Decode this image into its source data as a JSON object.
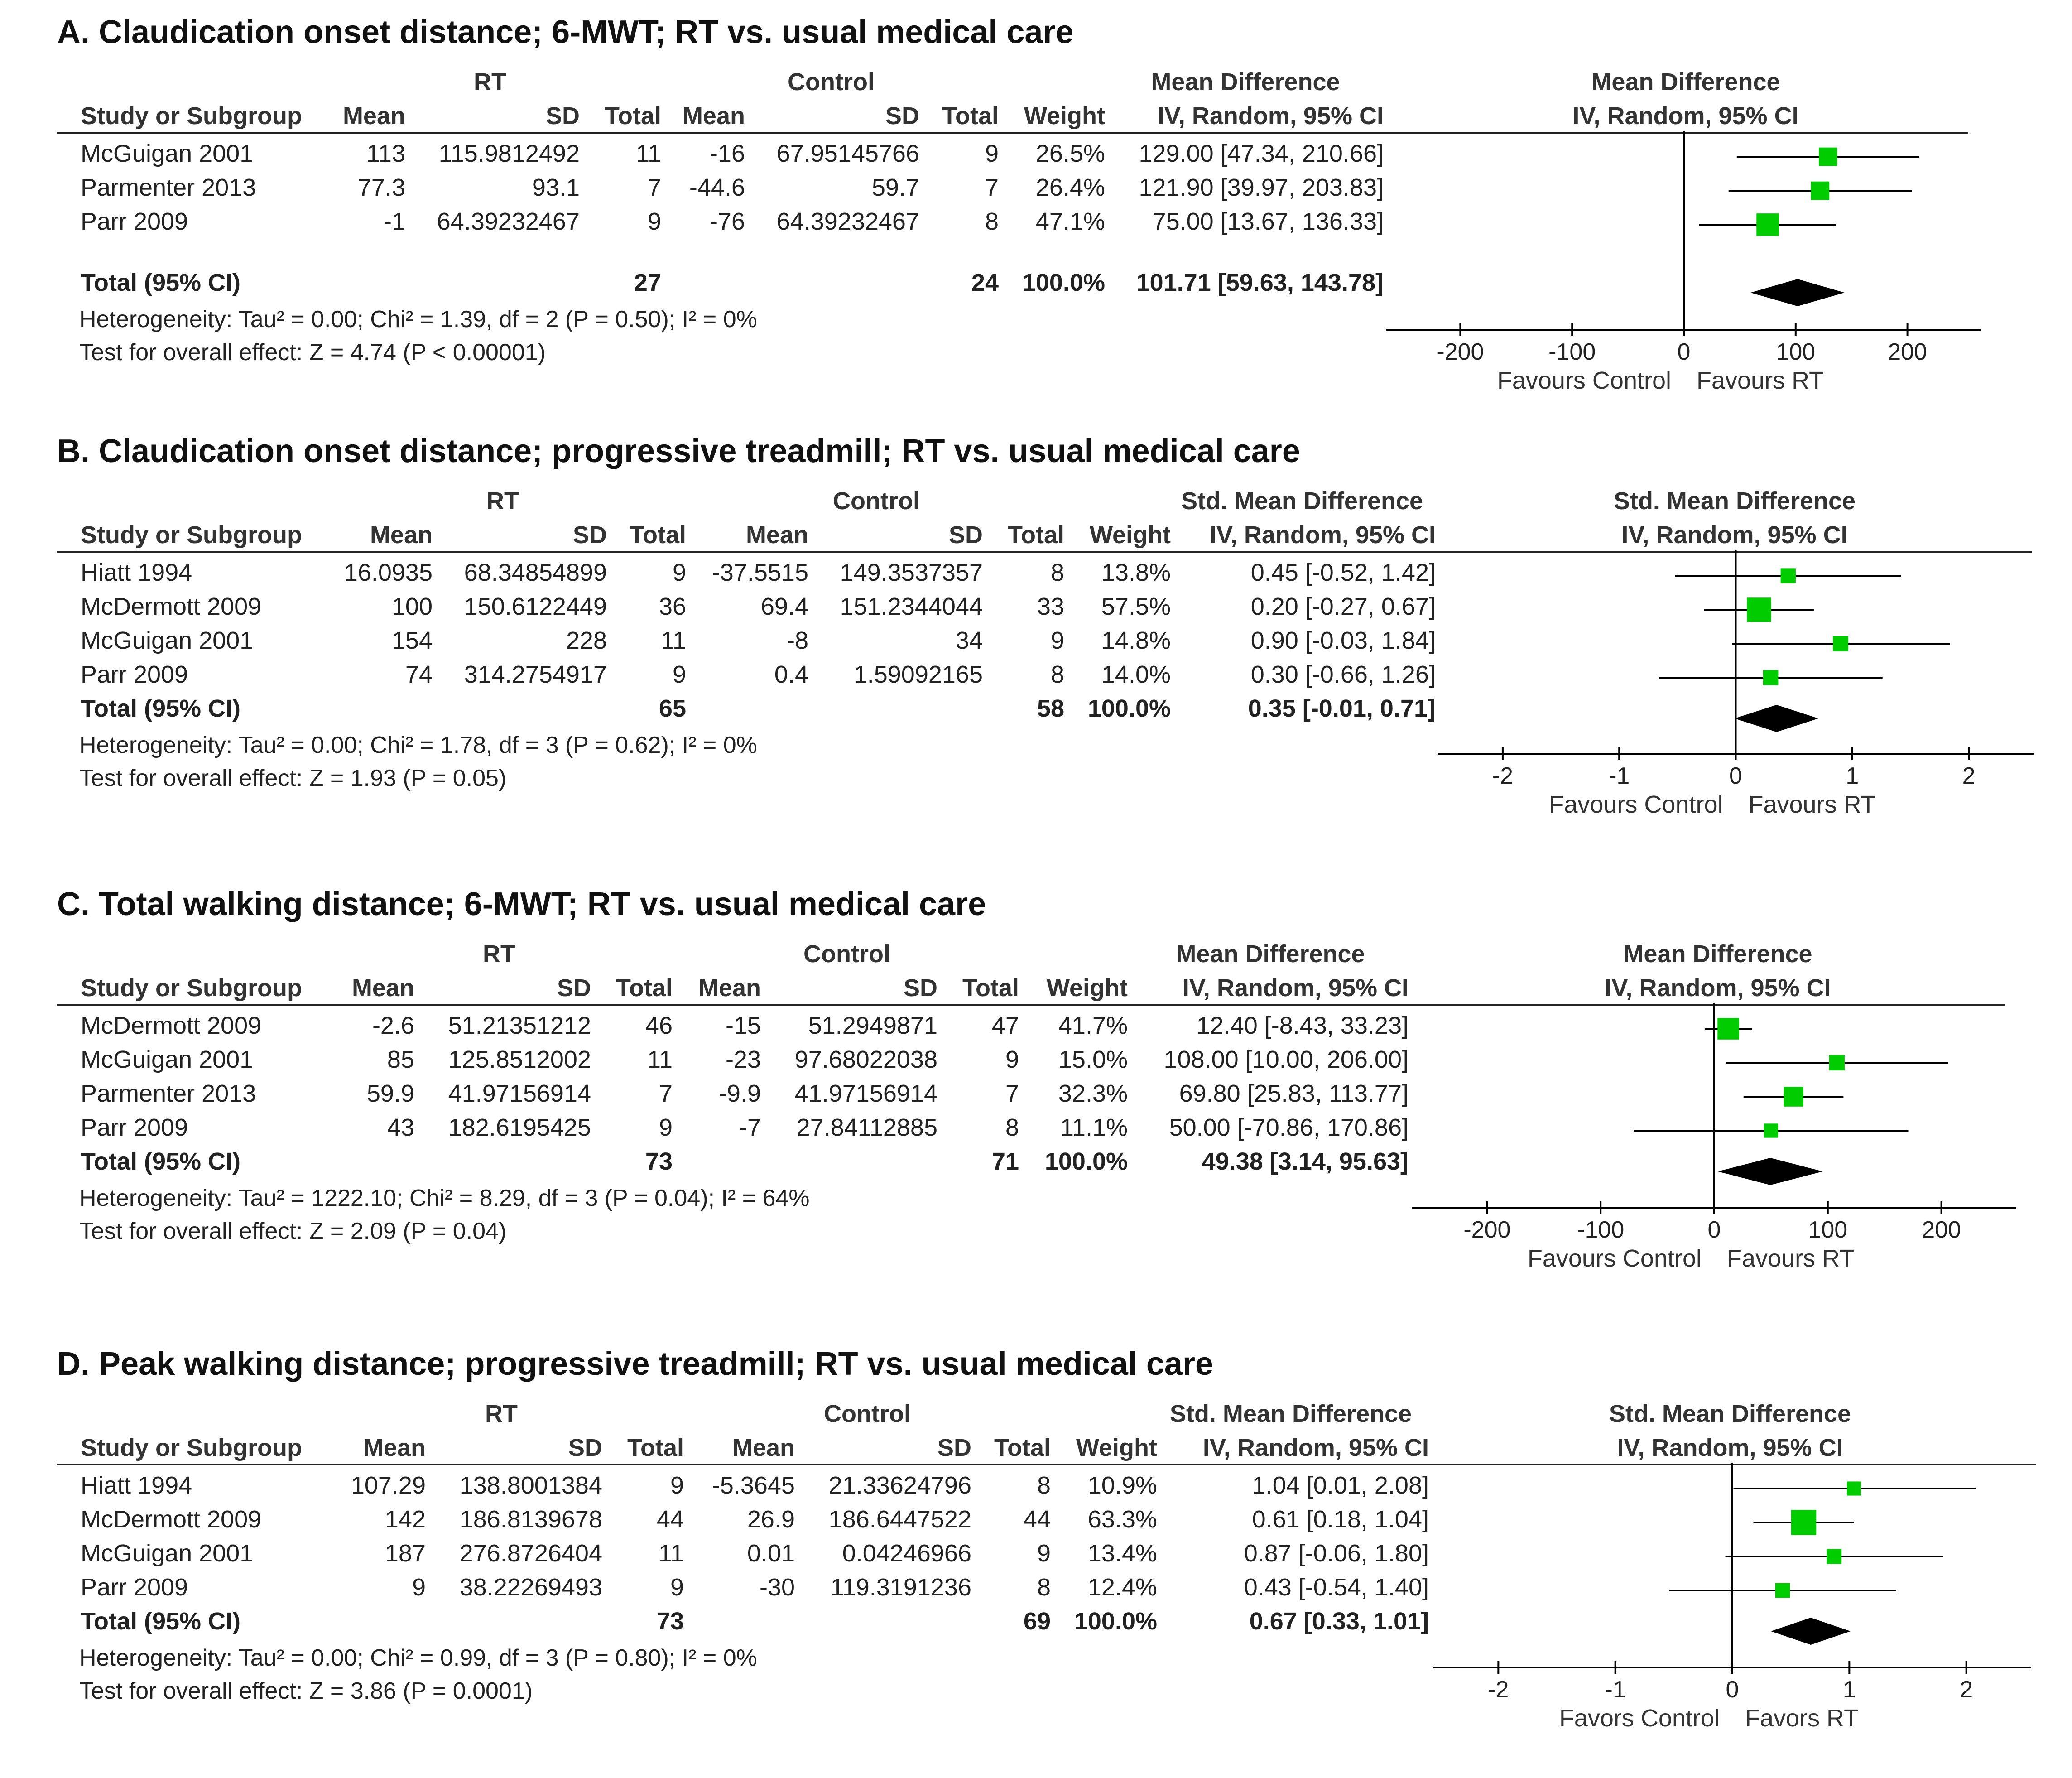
{
  "chart_data": [
    {
      "type": "forest",
      "title": "A. Claudication onset distance; 6-MWT; RT vs. usual medical care",
      "measure_header": "Mean Difference",
      "measure_subheader": "IV, Random, 95% CI",
      "group_rt": "RT",
      "group_ctrl": "Control",
      "columns": [
        "Study or Subgroup",
        "Mean",
        "SD",
        "Total",
        "Mean",
        "SD",
        "Total",
        "Weight"
      ],
      "studies": [
        {
          "name": "McGuigan 2001",
          "rt_mean": "113",
          "rt_sd": "115.9812492",
          "rt_total": "11",
          "c_mean": "-16",
          "c_sd": "67.95145766",
          "c_total": "9",
          "weight": "26.5%",
          "ci_text": "129.00 [47.34, 210.66]",
          "est": 129.0,
          "lo": 47.34,
          "hi": 210.66,
          "w": 26.5
        },
        {
          "name": "Parmenter 2013",
          "rt_mean": "77.3",
          "rt_sd": "93.1",
          "rt_total": "7",
          "c_mean": "-44.6",
          "c_sd": "59.7",
          "c_total": "7",
          "weight": "26.4%",
          "ci_text": "121.90 [39.97, 203.83]",
          "est": 121.9,
          "lo": 39.97,
          "hi": 203.83,
          "w": 26.4
        },
        {
          "name": "Parr 2009",
          "rt_mean": "-1",
          "rt_sd": "64.39232467",
          "rt_total": "9",
          "c_mean": "-76",
          "c_sd": "64.39232467",
          "c_total": "8",
          "weight": "47.1%",
          "ci_text": "75.00 [13.67, 136.33]",
          "est": 75.0,
          "lo": 13.67,
          "hi": 136.33,
          "w": 47.1
        }
      ],
      "total": {
        "label": "Total (95% CI)",
        "rt_total": "27",
        "c_total": "24",
        "weight": "100.0%",
        "ci_text": "101.71 [59.63, 143.78]",
        "est": 101.71,
        "lo": 59.63,
        "hi": 143.78
      },
      "heterogeneity": "Heterogeneity: Tau² = 0.00; Chi² = 1.39, df = 2 (P = 0.50); I² = 0%",
      "overall": "Test for overall effect: Z = 4.74 (P < 0.00001)",
      "xlim": [
        -250,
        250
      ],
      "ticks": [
        -200,
        -100,
        0,
        100,
        200
      ],
      "tick_labels": [
        "-200",
        "-100",
        "0",
        "100",
        "200"
      ],
      "favours_left": "Favours Control",
      "favours_right": "Favours RT"
    },
    {
      "type": "forest",
      "title": "B. Claudication onset distance; progressive treadmill; RT vs. usual medical care",
      "measure_header": "Std. Mean Difference",
      "measure_subheader": "IV, Random, 95% CI",
      "group_rt": "RT",
      "group_ctrl": "Control",
      "columns": [
        "Study or Subgroup",
        "Mean",
        "SD",
        "Total",
        "Mean",
        "SD",
        "Total",
        "Weight"
      ],
      "studies": [
        {
          "name": "Hiatt 1994",
          "rt_mean": "16.0935",
          "rt_sd": "68.34854899",
          "rt_total": "9",
          "c_mean": "-37.5515",
          "c_sd": "149.3537357",
          "c_total": "8",
          "weight": "13.8%",
          "ci_text": "0.45 [-0.52, 1.42]",
          "est": 0.45,
          "lo": -0.52,
          "hi": 1.42,
          "w": 13.8
        },
        {
          "name": "McDermott 2009",
          "rt_mean": "100",
          "rt_sd": "150.6122449",
          "rt_total": "36",
          "c_mean": "69.4",
          "c_sd": "151.2344044",
          "c_total": "33",
          "weight": "57.5%",
          "ci_text": "0.20 [-0.27, 0.67]",
          "est": 0.2,
          "lo": -0.27,
          "hi": 0.67,
          "w": 57.5
        },
        {
          "name": "McGuigan 2001",
          "rt_mean": "154",
          "rt_sd": "228",
          "rt_total": "11",
          "c_mean": "-8",
          "c_sd": "34",
          "c_total": "9",
          "weight": "14.8%",
          "ci_text": "0.90 [-0.03, 1.84]",
          "est": 0.9,
          "lo": -0.03,
          "hi": 1.84,
          "w": 14.8
        },
        {
          "name": "Parr 2009",
          "rt_mean": "74",
          "rt_sd": "314.2754917",
          "rt_total": "9",
          "c_mean": "0.4",
          "c_sd": "1.59092165",
          "c_total": "8",
          "weight": "14.0%",
          "ci_text": "0.30 [-0.66, 1.26]",
          "est": 0.3,
          "lo": -0.66,
          "hi": 1.26,
          "w": 14.0
        }
      ],
      "total": {
        "label": "Total (95% CI)",
        "rt_total": "65",
        "c_total": "58",
        "weight": "100.0%",
        "ci_text": "0.35 [-0.01, 0.71]",
        "est": 0.35,
        "lo": -0.01,
        "hi": 0.71
      },
      "heterogeneity": "Heterogeneity: Tau² = 0.00; Chi² = 1.78, df = 3 (P = 0.62); I² = 0%",
      "overall": "Test for overall effect: Z = 1.93 (P = 0.05)",
      "xlim": [
        -2.4,
        2.4
      ],
      "ticks": [
        -2,
        -1,
        0,
        1,
        2
      ],
      "tick_labels": [
        "-2",
        "-1",
        "0",
        "1",
        "2"
      ],
      "favours_left": "Favours Control",
      "favours_right": "Favours RT"
    },
    {
      "type": "forest",
      "title": "C. Total walking distance; 6-MWT; RT vs. usual medical care",
      "measure_header": "Mean Difference",
      "measure_subheader": "IV, Random, 95% CI",
      "group_rt": "RT",
      "group_ctrl": "Control",
      "columns": [
        "Study or Subgroup",
        "Mean",
        "SD",
        "Total",
        "Mean",
        "SD",
        "Total",
        "Weight"
      ],
      "studies": [
        {
          "name": "McDermott 2009",
          "rt_mean": "-2.6",
          "rt_sd": "51.21351212",
          "rt_total": "46",
          "c_mean": "-15",
          "c_sd": "51.2949871",
          "c_total": "47",
          "weight": "41.7%",
          "ci_text": "12.40 [-8.43, 33.23]",
          "est": 12.4,
          "lo": -8.43,
          "hi": 33.23,
          "w": 41.7
        },
        {
          "name": "McGuigan 2001",
          "rt_mean": "85",
          "rt_sd": "125.8512002",
          "rt_total": "11",
          "c_mean": "-23",
          "c_sd": "97.68022038",
          "c_total": "9",
          "weight": "15.0%",
          "ci_text": "108.00 [10.00, 206.00]",
          "est": 108.0,
          "lo": 10.0,
          "hi": 206.0,
          "w": 15.0
        },
        {
          "name": "Parmenter 2013",
          "rt_mean": "59.9",
          "rt_sd": "41.97156914",
          "rt_total": "7",
          "c_mean": "-9.9",
          "c_sd": "41.97156914",
          "c_total": "7",
          "weight": "32.3%",
          "ci_text": "69.80 [25.83, 113.77]",
          "est": 69.8,
          "lo": 25.83,
          "hi": 113.77,
          "w": 32.3
        },
        {
          "name": "Parr 2009",
          "rt_mean": "43",
          "rt_sd": "182.6195425",
          "rt_total": "9",
          "c_mean": "-7",
          "c_sd": "27.84112885",
          "c_total": "8",
          "weight": "11.1%",
          "ci_text": "50.00 [-70.86, 170.86]",
          "est": 50.0,
          "lo": -70.86,
          "hi": 170.86,
          "w": 11.1
        }
      ],
      "total": {
        "label": "Total (95% CI)",
        "rt_total": "73",
        "c_total": "71",
        "weight": "100.0%",
        "ci_text": "49.38 [3.14, 95.63]",
        "est": 49.38,
        "lo": 3.14,
        "hi": 95.63
      },
      "heterogeneity": "Heterogeneity: Tau² = 1222.10; Chi² = 8.29, df = 3 (P = 0.04); I² = 64%",
      "overall": "Test for overall effect: Z = 2.09 (P = 0.04)",
      "xlim": [
        -250,
        250
      ],
      "ticks": [
        -200,
        -100,
        0,
        100,
        200
      ],
      "tick_labels": [
        "-200",
        "-100",
        "0",
        "100",
        "200"
      ],
      "favours_left": "Favours Control",
      "favours_right": "Favours RT"
    },
    {
      "type": "forest",
      "title": "D. Peak walking distance; progressive treadmill; RT vs. usual medical care",
      "measure_header": "Std. Mean Difference",
      "measure_subheader": "IV, Random, 95% CI",
      "group_rt": "RT",
      "group_ctrl": "Control",
      "columns": [
        "Study or Subgroup",
        "Mean",
        "SD",
        "Total",
        "Mean",
        "SD",
        "Total",
        "Weight"
      ],
      "studies": [
        {
          "name": "Hiatt 1994",
          "rt_mean": "107.29",
          "rt_sd": "138.8001384",
          "rt_total": "9",
          "c_mean": "-5.3645",
          "c_sd": "21.33624796",
          "c_total": "8",
          "weight": "10.9%",
          "ci_text": "1.04 [0.01, 2.08]",
          "est": 1.04,
          "lo": 0.01,
          "hi": 2.08,
          "w": 10.9
        },
        {
          "name": "McDermott 2009",
          "rt_mean": "142",
          "rt_sd": "186.8139678",
          "rt_total": "44",
          "c_mean": "26.9",
          "c_sd": "186.6447522",
          "c_total": "44",
          "weight": "63.3%",
          "ci_text": "0.61 [0.18, 1.04]",
          "est": 0.61,
          "lo": 0.18,
          "hi": 1.04,
          "w": 63.3
        },
        {
          "name": "McGuigan 2001",
          "rt_mean": "187",
          "rt_sd": "276.8726404",
          "rt_total": "11",
          "c_mean": "0.01",
          "c_sd": "0.04246966",
          "c_total": "9",
          "weight": "13.4%",
          "ci_text": "0.87 [-0.06, 1.80]",
          "est": 0.87,
          "lo": -0.06,
          "hi": 1.8,
          "w": 13.4
        },
        {
          "name": "Parr 2009",
          "rt_mean": "9",
          "rt_sd": "38.22269493",
          "rt_total": "9",
          "c_mean": "-30",
          "c_sd": "119.3191236",
          "c_total": "8",
          "weight": "12.4%",
          "ci_text": "0.43 [-0.54, 1.40]",
          "est": 0.43,
          "lo": -0.54,
          "hi": 1.4,
          "w": 12.4
        }
      ],
      "total": {
        "label": "Total (95% CI)",
        "rt_total": "73",
        "c_total": "69",
        "weight": "100.0%",
        "ci_text": "0.67 [0.33, 1.01]",
        "est": 0.67,
        "lo": 0.33,
        "hi": 1.01
      },
      "heterogeneity": "Heterogeneity: Tau² = 0.00; Chi² = 0.99, df = 3 (P = 0.80); I² = 0%",
      "overall": "Test for overall effect: Z = 3.86 (P = 0.0001)",
      "xlim": [
        -2.4,
        2.4
      ],
      "ticks": [
        -2,
        -1,
        0,
        1,
        2
      ],
      "tick_labels": [
        "-2",
        "-1",
        "0",
        "1",
        "2"
      ],
      "favours_left": "Favors Control",
      "favours_right": "Favors RT"
    }
  ],
  "colors": {
    "marker": "#00cc00",
    "diamond": "#000000",
    "line": "#000000",
    "text": "#222222"
  }
}
